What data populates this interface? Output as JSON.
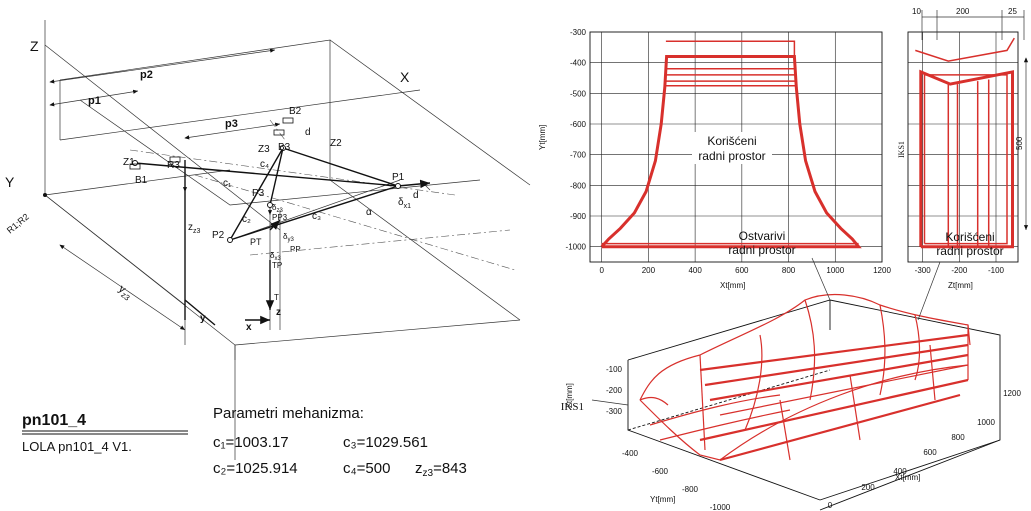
{
  "mechanism_labels": {
    "Z": "Z",
    "X": "X",
    "Y": "Y",
    "p1": "p1",
    "p2": "p2",
    "p3": "p3",
    "B1": "B1",
    "B2": "B2",
    "B3": "B3",
    "Z1": "Z1",
    "Z2": "Z2",
    "Z3": "Z3",
    "R3": "R3",
    "R1R2": "R1;R2",
    "P1": "P1",
    "P2": "P2",
    "P3": "P3",
    "PP3": "PP3",
    "PT": "PT",
    "PP": "PP",
    "TP": "TP",
    "T": "T",
    "c1": "c₁",
    "c2": "c₂",
    "c3": "c₃",
    "c4": "c₄",
    "d1": "d",
    "d2": "d",
    "zz3": "z",
    "zz3_sub": "z3",
    "yz3": "y",
    "yz3_sub": "z3",
    "dx1": "δ",
    "dx1_sub": "x1",
    "dx3": "δ",
    "dx3_sub": "x3",
    "dy3": "δ",
    "dy3_sub": "y3",
    "dz3": "δ",
    "dz3_sub": "z3",
    "alpha": "α",
    "y": "y",
    "x": "x",
    "z": "z"
  },
  "model": {
    "name": "pn101_4",
    "version": "LOLA pn101_4 V1."
  },
  "params": {
    "title": "Parametri mehanizma:",
    "c1": "c₁=1003.17",
    "c2": "c₂=1025.914",
    "c3": "c₃=1029.561",
    "c4": "c₄=500",
    "zz3": "z",
    "zz3_sub": "z3",
    "zz3_val": "=843"
  },
  "chart_data": [
    {
      "type": "line",
      "id": "xy_workspace",
      "xlabel": "Xt[mm]",
      "ylabel": "Yt[mm]",
      "xlim": [
        -50,
        1200
      ],
      "ylim": [
        -1050,
        -300
      ],
      "xticks": [
        0,
        200,
        400,
        600,
        800,
        1000,
        1200
      ],
      "yticks": [
        -300,
        -400,
        -500,
        -600,
        -700,
        -800,
        -900,
        -1000
      ],
      "annotation": [
        "Korišćeni",
        "radni prostor"
      ],
      "grid": true,
      "series": [
        {
          "values": [
            [
              0,
              -1000
            ],
            [
              30,
              -975
            ],
            [
              80,
              -940
            ],
            [
              140,
              -890
            ],
            [
              190,
              -820
            ],
            [
              230,
              -720
            ],
            [
              255,
              -600
            ],
            [
              270,
              -480
            ],
            [
              278,
              -380
            ],
            [
              825,
              -380
            ],
            [
              833,
              -480
            ],
            [
              848,
              -600
            ],
            [
              873,
              -720
            ],
            [
              913,
              -820
            ],
            [
              963,
              -890
            ],
            [
              1023,
              -940
            ],
            [
              1073,
              -975
            ],
            [
              1100,
              -1000
            ],
            [
              0,
              -1000
            ]
          ]
        },
        {
          "values": [
            [
              275,
              -330
            ],
            [
              825,
              -330
            ],
            [
              825,
              -380
            ]
          ]
        },
        {
          "values": [
            [
              270,
              -420
            ],
            [
              833,
              -420
            ]
          ]
        },
        {
          "values": [
            [
              270,
              -440
            ],
            [
              833,
              -440
            ]
          ]
        },
        {
          "values": [
            [
              268,
              -460
            ],
            [
              835,
              -460
            ]
          ]
        },
        {
          "values": [
            [
              268,
              -475
            ],
            [
              835,
              -475
            ]
          ]
        },
        {
          "values": [
            [
              0,
              -990
            ],
            [
              1100,
              -990
            ]
          ]
        }
      ]
    },
    {
      "type": "line",
      "id": "zy_workspace",
      "xlabel": "Zt[mm]",
      "xlim": [
        -340,
        -40
      ],
      "ylim": [
        -1050,
        -300
      ],
      "xticks": [
        -300,
        -200,
        -100
      ],
      "dimensions": [
        "10",
        "200",
        "25",
        "500"
      ],
      "annotation": "IKS1",
      "grid": true,
      "series": [
        {
          "values": [
            [
              -305,
              -1000
            ],
            [
              -305,
              -430
            ],
            [
              -225,
              -470
            ],
            [
              -55,
              -430
            ],
            [
              -55,
              -1000
            ],
            [
              -305,
              -1000
            ]
          ]
        },
        {
          "values": [
            [
              -320,
              -360
            ],
            [
              -230,
              -395
            ],
            [
              -70,
              -360
            ],
            [
              -50,
              -320
            ]
          ]
        },
        {
          "values": [
            [
              -295,
              -990
            ],
            [
              -295,
              -440
            ],
            [
              -70,
              -440
            ],
            [
              -70,
              -990
            ],
            [
              -295,
              -990
            ]
          ]
        },
        {
          "values": [
            [
              -230,
              -470
            ],
            [
              -230,
              -1000
            ]
          ]
        },
        {
          "values": [
            [
              -205,
              -470
            ],
            [
              -205,
              -1000
            ]
          ]
        },
        {
          "values": [
            [
              -150,
              -460
            ],
            [
              -150,
              -1000
            ]
          ]
        },
        {
          "values": [
            [
              -120,
              -455
            ],
            [
              -120,
              -1000
            ]
          ]
        }
      ]
    },
    {
      "type": "line",
      "id": "xyz_workspace",
      "xlabel": "Xt[mm]",
      "ylabel": "Yt[mm]",
      "zlabel": "Zt[mm]",
      "xticks": [
        0,
        200,
        400,
        600,
        800,
        1000,
        1200
      ],
      "yticks": [
        -400,
        -600,
        -800,
        -1000
      ],
      "zticks": [
        -100,
        -200,
        -300
      ],
      "annotations": [
        "Ostvarivi",
        "radni prostor",
        "Korišćeni",
        "radni prostor",
        "IKS1"
      ]
    }
  ]
}
